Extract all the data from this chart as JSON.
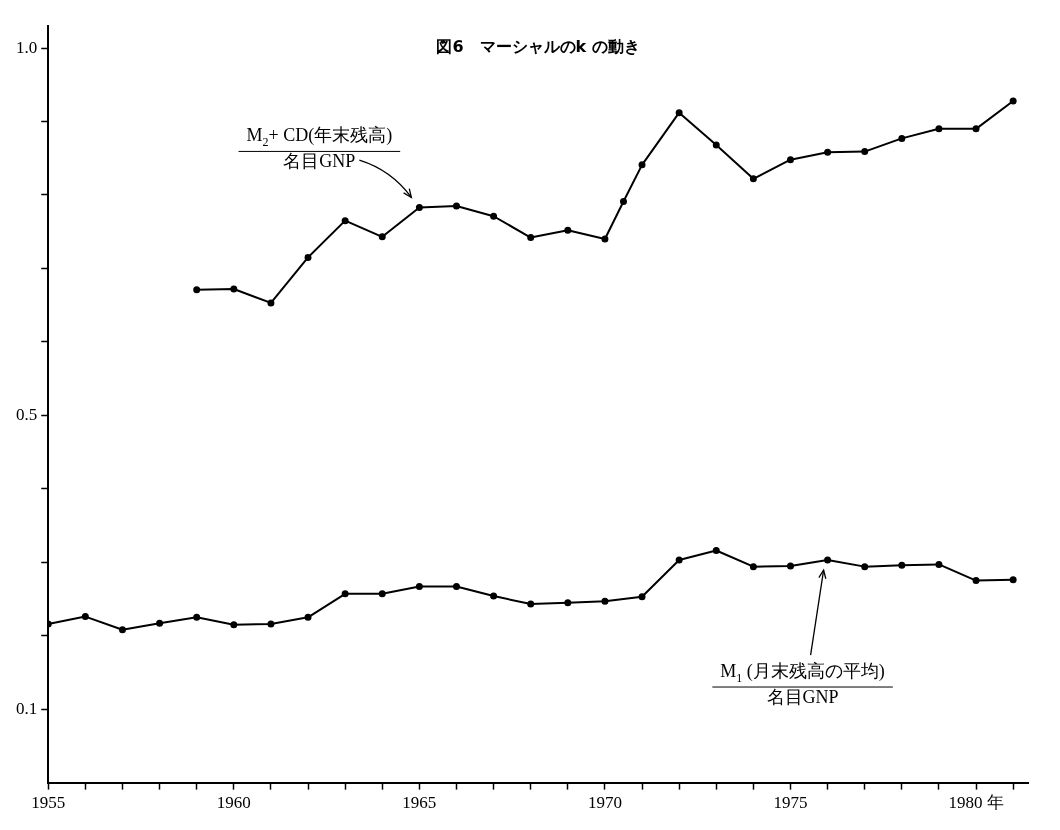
{
  "chart_data": {
    "type": "line",
    "title": "図6　マーシャルのk の動き",
    "xlim": [
      1955,
      1981.4
    ],
    "ylim": [
      0,
      1.03
    ],
    "xticks": [
      1955,
      {
        "value": 1956,
        "label": null
      },
      {
        "value": 1957,
        "label": null
      },
      {
        "value": 1958,
        "label": null
      },
      {
        "value": 1959,
        "label": null
      },
      1960,
      {
        "value": 1961,
        "label": null
      },
      {
        "value": 1962,
        "label": null
      },
      {
        "value": 1963,
        "label": null
      },
      {
        "value": 1964,
        "label": null
      },
      1965,
      {
        "value": 1966,
        "label": null
      },
      {
        "value": 1967,
        "label": null
      },
      {
        "value": 1968,
        "label": null
      },
      {
        "value": 1969,
        "label": null
      },
      1970,
      {
        "value": 1971,
        "label": null
      },
      {
        "value": 1972,
        "label": null
      },
      {
        "value": 1973,
        "label": null
      },
      {
        "value": 1974,
        "label": null
      },
      1975,
      {
        "value": 1976,
        "label": null
      },
      {
        "value": 1977,
        "label": null
      },
      {
        "value": 1978,
        "label": null
      },
      {
        "value": 1979,
        "label": null
      },
      {
        "value": 1980,
        "label": "1980 年"
      },
      {
        "value": 1981,
        "label": null
      }
    ],
    "yticks": [
      0.1,
      {
        "value": 0.2,
        "label": null
      },
      {
        "value": 0.3,
        "label": null
      },
      {
        "value": 0.4,
        "label": null
      },
      0.5,
      {
        "value": 0.6,
        "label": null
      },
      {
        "value": 0.7,
        "label": null
      },
      {
        "value": 0.8,
        "label": null
      },
      {
        "value": 0.9,
        "label": null
      },
      {
        "value": 1,
        "label": "1.0"
      }
    ],
    "grid": false,
    "legend": false,
    "marker": "circle",
    "line_style": "solid",
    "series": [
      {
        "name": "M$_{2}$+ CD(年末残高)\n名目GNP",
        "color": "#000000",
        "x": [
          1959,
          1960,
          1961,
          1962,
          1963,
          1964,
          1965,
          1966,
          1967,
          1968,
          1969,
          1970,
          1970.5,
          1971,
          1972,
          1973,
          1974,
          1975,
          1976,
          1977,
          1978,
          1979,
          1980,
          1981
        ],
        "values": [
          0.671,
          0.672,
          0.653,
          0.715,
          0.765,
          0.743,
          0.783,
          0.785,
          0.771,
          0.742,
          0.752,
          0.74,
          0.791,
          0.841,
          0.912,
          0.868,
          0.822,
          0.848,
          0.858,
          0.859,
          0.877,
          0.89,
          0.89,
          0.928
        ]
      },
      {
        "name": "M$_{1}$ (月末残高の平均)\n名目GNP",
        "color": "#000000",
        "x": [
          1955,
          1956,
          1957,
          1958,
          1959,
          1960,
          1961,
          1962,
          1963,
          1964,
          1965,
          1966,
          1967,
          1968,
          1969,
          1970,
          1971,
          1972,
          1973,
          1974,
          1975,
          1976,
          1977,
          1978,
          1979,
          1980,
          1981
        ],
        "values": [
          0.216,
          0.226,
          0.208,
          0.217,
          0.225,
          0.215,
          0.216,
          0.225,
          0.257,
          0.257,
          0.267,
          0.267,
          0.254,
          0.243,
          0.245,
          0.247,
          0.253,
          0.303,
          0.316,
          0.294,
          0.295,
          0.303,
          0.294,
          0.296,
          0.297,
          0.275,
          0.276
        ]
      }
    ]
  }
}
